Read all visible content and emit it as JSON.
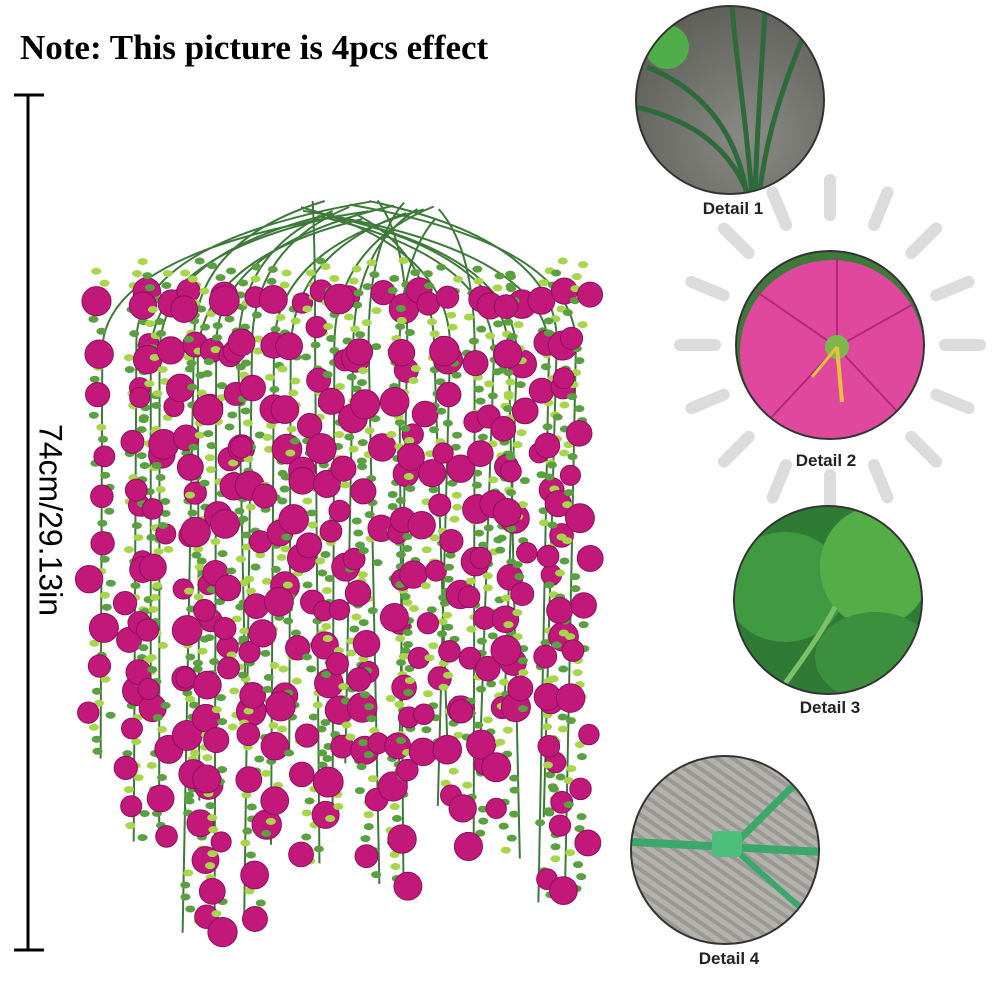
{
  "title": "Note: This picture is 4pcs effect",
  "dimension": "74cm/29.13in",
  "colors": {
    "flower": "#c2187a",
    "leaf": "#5aa040",
    "stem": "#3d7a3a",
    "rays": "#dcdcdc"
  },
  "details": [
    {
      "label": "Detail 1",
      "subject": "stems"
    },
    {
      "label": "Detail 2",
      "subject": "flower"
    },
    {
      "label": "Detail 3",
      "subject": "leaves"
    },
    {
      "label": "Detail 4",
      "subject": "stem-joint"
    }
  ]
}
